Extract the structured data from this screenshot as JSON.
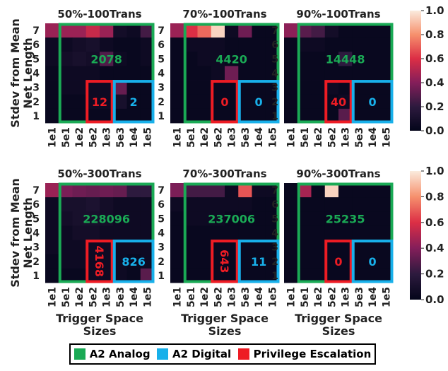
{
  "chart_data": {
    "type": "heatmap",
    "row_tick_labels": [
      "7",
      "6",
      "5",
      "4",
      "3",
      "2",
      "1"
    ],
    "col_tick_labels": [
      "1e1",
      "5e1",
      "1e2",
      "5e2",
      "1e3",
      "5e3",
      "1e4",
      "1e5"
    ],
    "ylabel_line1": "Stdev from Mean",
    "ylabel_line2": "Net Length",
    "xlabel_line1": "Trigger Space",
    "xlabel_line2": "Sizes",
    "colorbar": {
      "min": 0.0,
      "max": 1.0,
      "ticks": [
        "1.0",
        "0.8",
        "0.6",
        "0.4",
        "0.2",
        "0.0"
      ]
    },
    "colors": {
      "analog": "#1aaa55",
      "digital": "#18b0ea",
      "priv": "#ee1c24"
    },
    "legend": [
      "A2 Analog",
      "A2 Digital",
      "Privilege Escalation"
    ],
    "panels": [
      {
        "title": "50%-100Trans",
        "analog": "2078",
        "priv": "12",
        "digital": "2",
        "values": [
          [
            0.45,
            0.45,
            0.45,
            0.55,
            0.45,
            0.08,
            0.05,
            0.25
          ],
          [
            0.05,
            0.05,
            0.08,
            0.1,
            0.05,
            0.03,
            0.03,
            0.05
          ],
          [
            0.05,
            0.08,
            0.1,
            0.08,
            0.28,
            0.05,
            0.03,
            0.05
          ],
          [
            0.03,
            0.05,
            0.05,
            0.05,
            0.03,
            0.03,
            0.03,
            0.03
          ],
          [
            0.03,
            0.05,
            0.05,
            0.05,
            0.05,
            0.33,
            0.03,
            0.03
          ],
          [
            0.03,
            0.03,
            0.03,
            0.05,
            0.05,
            0.1,
            0.03,
            0.03
          ],
          [
            0.03,
            0.03,
            0.03,
            0.03,
            0.03,
            0.03,
            0.03,
            0.03
          ]
        ]
      },
      {
        "title": "70%-100Trans",
        "analog": "4420",
        "priv": "0",
        "digital": "0",
        "values": [
          [
            0.45,
            0.6,
            0.72,
            0.95,
            0.05,
            0.35,
            0.03,
            0.03
          ],
          [
            0.03,
            0.05,
            0.05,
            0.05,
            0.03,
            0.03,
            0.03,
            0.03
          ],
          [
            0.03,
            0.03,
            0.05,
            0.05,
            0.03,
            0.03,
            0.03,
            0.03
          ],
          [
            0.03,
            0.03,
            0.03,
            0.05,
            0.35,
            0.03,
            0.03,
            0.03
          ],
          [
            0.03,
            0.03,
            0.03,
            0.03,
            0.03,
            0.03,
            0.03,
            0.03
          ],
          [
            0.03,
            0.03,
            0.03,
            0.03,
            0.03,
            0.03,
            0.03,
            0.03
          ],
          [
            0.03,
            0.03,
            0.03,
            0.03,
            0.03,
            0.03,
            0.03,
            0.03
          ]
        ]
      },
      {
        "title": "90%-100Trans",
        "analog": "14448",
        "priv": "40",
        "digital": "0",
        "values": [
          [
            0.42,
            0.3,
            0.25,
            0.08,
            0.03,
            0.03,
            0.03,
            0.03
          ],
          [
            0.03,
            0.05,
            0.05,
            0.03,
            0.03,
            0.03,
            0.03,
            0.03
          ],
          [
            0.03,
            0.03,
            0.03,
            0.03,
            0.2,
            0.03,
            0.03,
            0.03
          ],
          [
            0.03,
            0.03,
            0.03,
            0.03,
            0.03,
            0.03,
            0.03,
            0.03
          ],
          [
            0.03,
            0.03,
            0.03,
            0.05,
            0.03,
            0.03,
            0.03,
            0.03
          ],
          [
            0.03,
            0.03,
            0.03,
            0.03,
            0.05,
            0.03,
            0.03,
            0.03
          ],
          [
            0.03,
            0.03,
            0.03,
            0.03,
            0.3,
            0.03,
            0.03,
            0.03
          ]
        ]
      },
      {
        "title": "50%-300Trans",
        "analog": "228096",
        "priv": "4168",
        "digital": "826",
        "values": [
          [
            0.45,
            0.38,
            0.35,
            0.33,
            0.35,
            0.33,
            0.2,
            0.2
          ],
          [
            0.05,
            0.1,
            0.1,
            0.12,
            0.08,
            0.05,
            0.05,
            0.05
          ],
          [
            0.05,
            0.08,
            0.1,
            0.1,
            0.08,
            0.05,
            0.05,
            0.05
          ],
          [
            0.05,
            0.05,
            0.08,
            0.08,
            0.05,
            0.05,
            0.05,
            0.05
          ],
          [
            0.05,
            0.05,
            0.05,
            0.05,
            0.05,
            0.05,
            0.05,
            0.05
          ],
          [
            0.03,
            0.05,
            0.05,
            0.05,
            0.05,
            0.05,
            0.03,
            0.05
          ],
          [
            0.03,
            0.03,
            0.03,
            0.05,
            0.05,
            0.05,
            0.03,
            0.3
          ]
        ]
      },
      {
        "title": "70%-300Trans",
        "analog": "237006",
        "priv": "643",
        "digital": "11",
        "values": [
          [
            0.38,
            0.25,
            0.25,
            0.25,
            0.05,
            0.68,
            0.05,
            0.05
          ],
          [
            0.05,
            0.05,
            0.05,
            0.05,
            0.05,
            0.05,
            0.03,
            0.03
          ],
          [
            0.03,
            0.05,
            0.05,
            0.05,
            0.03,
            0.03,
            0.03,
            0.03
          ],
          [
            0.03,
            0.03,
            0.03,
            0.03,
            0.03,
            0.03,
            0.03,
            0.03
          ],
          [
            0.03,
            0.03,
            0.03,
            0.03,
            0.03,
            0.03,
            0.03,
            0.03
          ],
          [
            0.03,
            0.03,
            0.03,
            0.03,
            0.03,
            0.03,
            0.03,
            0.03
          ],
          [
            0.03,
            0.03,
            0.03,
            0.03,
            0.03,
            0.03,
            0.03,
            0.03
          ]
        ]
      },
      {
        "title": "90%-300Trans",
        "analog": "25235",
        "priv": "0",
        "digital": "0",
        "values": [
          [
            0.03,
            0.48,
            0.03,
            0.95,
            0.03,
            0.03,
            0.03,
            0.03
          ],
          [
            0.03,
            0.03,
            0.03,
            0.03,
            0.03,
            0.03,
            0.03,
            0.03
          ],
          [
            0.03,
            0.03,
            0.03,
            0.03,
            0.03,
            0.03,
            0.03,
            0.03
          ],
          [
            0.03,
            0.03,
            0.03,
            0.03,
            0.03,
            0.03,
            0.03,
            0.03
          ],
          [
            0.03,
            0.03,
            0.03,
            0.03,
            0.03,
            0.03,
            0.03,
            0.03
          ],
          [
            0.03,
            0.03,
            0.03,
            0.03,
            0.03,
            0.03,
            0.03,
            0.03
          ],
          [
            0.03,
            0.03,
            0.03,
            0.03,
            0.03,
            0.03,
            0.03,
            0.03
          ]
        ]
      }
    ]
  }
}
